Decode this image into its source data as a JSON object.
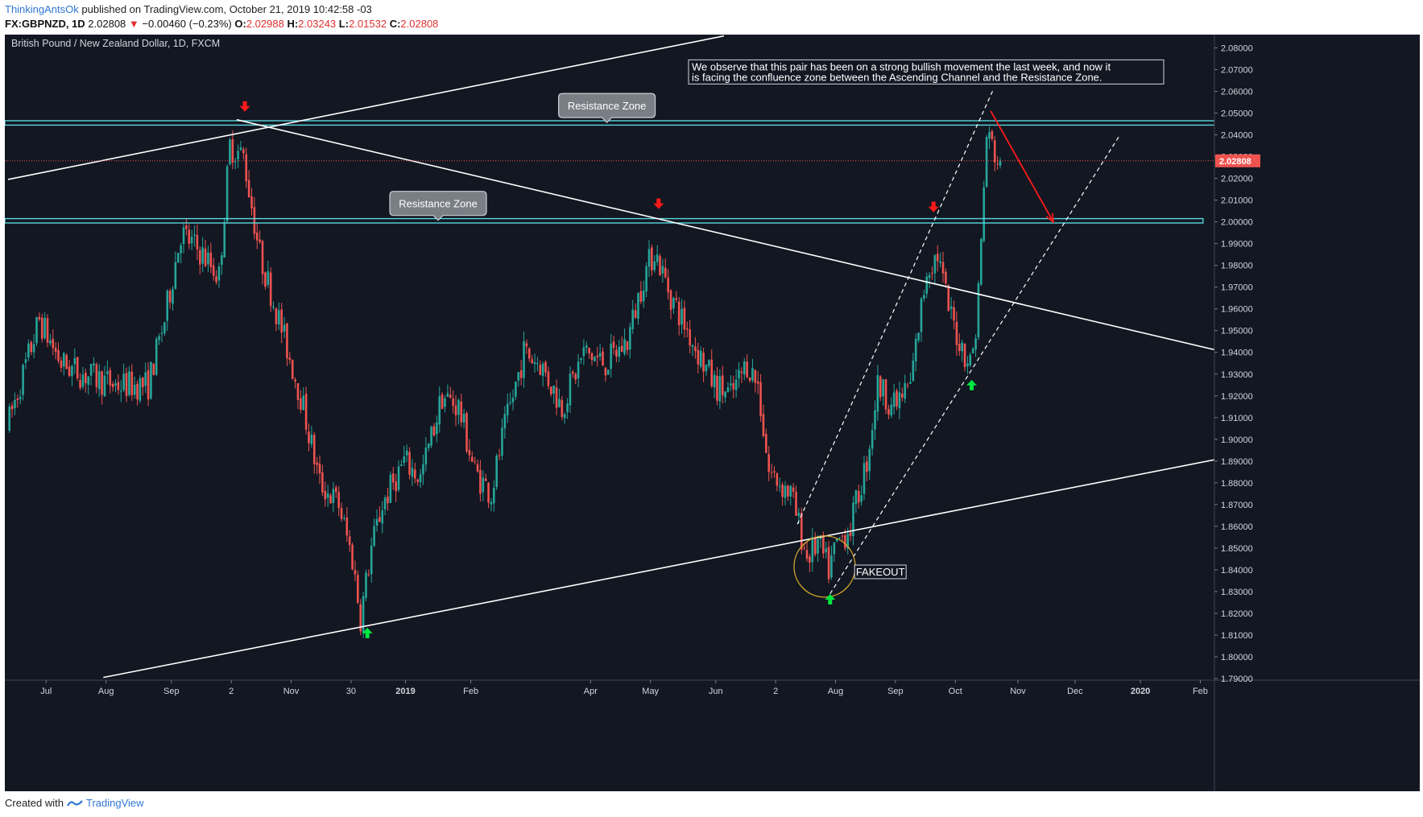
{
  "header": {
    "author": "ThinkingAntsOk",
    "published": "published on TradingView.com, October 21, 2019 10:42:58 -03",
    "symbol": "FX:GBPNZD, 1D",
    "last": "2.02808",
    "arrow": "▼",
    "change": "−0.00460 (−0.23%)",
    "o_label": "O:",
    "o_value": "2.02988",
    "h_label": "H:",
    "h_value": "2.03243",
    "l_label": "L:",
    "l_value": "2.01532",
    "c_label": "C:",
    "c_value": "2.02808"
  },
  "footer": {
    "created_with": "Created with",
    "brand": "TradingView"
  },
  "colors": {
    "background": "#131722",
    "up": "#26a69a",
    "down": "#ef5350",
    "zone": "#5ad6de",
    "line": "#ffffff",
    "price_tag": "#ef5350",
    "arrow_red": "#ff1a1a",
    "arrow_green": "#00e640",
    "circle": "#d4a72c"
  },
  "chart_data": {
    "type": "candlestick",
    "title": "British Pound / New Zealand Dollar, 1D, FXCM",
    "ylim": [
      1.79,
      2.085
    ],
    "y_ticks": [
      "2.08000",
      "2.07000",
      "2.06000",
      "2.05000",
      "2.04000",
      "2.03000",
      "2.02000",
      "2.01000",
      "2.00000",
      "1.99000",
      "1.98000",
      "1.97000",
      "1.96000",
      "1.95000",
      "1.94000",
      "1.93000",
      "1.92000",
      "1.91000",
      "1.90000",
      "1.89000",
      "1.88000",
      "1.87000",
      "1.86000",
      "1.85000",
      "1.84000",
      "1.83000",
      "1.82000",
      "1.81000",
      "1.80000",
      "1.79000"
    ],
    "x_ticks": [
      {
        "label": "Jul",
        "bar": 14,
        "bold": false
      },
      {
        "label": "Aug",
        "bar": 36,
        "bold": false
      },
      {
        "label": "Sep",
        "bar": 60,
        "bold": false
      },
      {
        "label": "2",
        "bar": 82,
        "bold": false
      },
      {
        "label": "Nov",
        "bar": 104,
        "bold": false
      },
      {
        "label": "30",
        "bar": 126,
        "bold": false
      },
      {
        "label": "2019",
        "bar": 146,
        "bold": true
      },
      {
        "label": "Feb",
        "bar": 170,
        "bold": false
      },
      {
        "label": "Apr",
        "bar": 214,
        "bold": false
      },
      {
        "label": "May",
        "bar": 236,
        "bold": false
      },
      {
        "label": "Jun",
        "bar": 260,
        "bold": false
      },
      {
        "label": "2",
        "bar": 282,
        "bold": false
      },
      {
        "label": "Aug",
        "bar": 304,
        "bold": false
      },
      {
        "label": "Sep",
        "bar": 326,
        "bold": false
      },
      {
        "label": "Oct",
        "bar": 348,
        "bold": false
      },
      {
        "label": "Nov",
        "bar": 371,
        "bold": false
      },
      {
        "label": "Dec",
        "bar": 392,
        "bold": false
      },
      {
        "label": "2020",
        "bar": 416,
        "bold": true
      },
      {
        "label": "Feb",
        "bar": 438,
        "bold": false
      }
    ],
    "bars_total": 444,
    "price_path": [
      [
        0,
        1.905
      ],
      [
        12,
        1.955
      ],
      [
        20,
        1.935
      ],
      [
        28,
        1.93
      ],
      [
        40,
        1.925
      ],
      [
        52,
        1.925
      ],
      [
        58,
        1.955
      ],
      [
        64,
        1.995
      ],
      [
        72,
        1.985
      ],
      [
        78,
        1.975
      ],
      [
        82,
        2.035
      ],
      [
        87,
        2.03
      ],
      [
        93,
        1.985
      ],
      [
        100,
        1.955
      ],
      [
        108,
        1.92
      ],
      [
        115,
        1.88
      ],
      [
        122,
        1.87
      ],
      [
        127,
        1.845
      ],
      [
        130,
        1.818
      ],
      [
        134,
        1.85
      ],
      [
        138,
        1.87
      ],
      [
        146,
        1.89
      ],
      [
        152,
        1.882
      ],
      [
        160,
        1.92
      ],
      [
        166,
        1.915
      ],
      [
        172,
        1.885
      ],
      [
        178,
        1.875
      ],
      [
        182,
        1.9
      ],
      [
        190,
        1.94
      ],
      [
        196,
        1.935
      ],
      [
        204,
        1.915
      ],
      [
        212,
        1.94
      ],
      [
        220,
        1.935
      ],
      [
        228,
        1.945
      ],
      [
        234,
        1.975
      ],
      [
        238,
        1.987
      ],
      [
        244,
        1.966
      ],
      [
        252,
        1.945
      ],
      [
        260,
        1.925
      ],
      [
        266,
        1.92
      ],
      [
        272,
        1.935
      ],
      [
        276,
        1.925
      ],
      [
        280,
        1.885
      ],
      [
        288,
        1.875
      ],
      [
        294,
        1.846
      ],
      [
        298,
        1.852
      ],
      [
        302,
        1.84
      ],
      [
        305,
        1.852
      ],
      [
        310,
        1.86
      ],
      [
        316,
        1.89
      ],
      [
        320,
        1.925
      ],
      [
        326,
        1.915
      ],
      [
        332,
        1.925
      ],
      [
        338,
        1.978
      ],
      [
        342,
        1.985
      ],
      [
        346,
        1.96
      ],
      [
        350,
        1.945
      ],
      [
        354,
        1.935
      ],
      [
        356,
        1.95
      ],
      [
        358,
        1.99
      ],
      [
        360,
        2.04
      ],
      [
        362,
        2.035
      ],
      [
        364,
        2.028
      ]
    ],
    "zones": [
      {
        "label": "Resistance Zone",
        "low": 2.0445,
        "high": 2.0465,
        "end_bar": 445,
        "label_bar": 220,
        "label_price": 2.0535
      },
      {
        "label": "Resistance Zone",
        "low": 1.9995,
        "high": 2.0015,
        "end_bar": 439,
        "label_bar": 158,
        "label_price": 2.0085
      }
    ],
    "lines": [
      {
        "from": [
          0,
          2.0195
        ],
        "to": [
          263,
          2.0855
        ],
        "style": "solid"
      },
      {
        "from": [
          35,
          1.7905
        ],
        "to": [
          444,
          1.8908
        ],
        "style": "solid"
      },
      {
        "from": [
          84,
          2.047
        ],
        "to": [
          444,
          1.941
        ],
        "style": "solid"
      },
      {
        "from": [
          290,
          1.861
        ],
        "to": [
          362,
          2.061
        ],
        "style": "dashed"
      },
      {
        "from": [
          302,
          1.829
        ],
        "to": [
          408,
          2.039
        ],
        "style": "dashed"
      }
    ],
    "forecast_arrow": {
      "from": [
        361,
        2.051
      ],
      "to": [
        384,
        2.0
      ]
    },
    "current_price": {
      "value": 2.02808,
      "label": "2.02808"
    },
    "red_markers": [
      [
        87,
        2.0525
      ],
      [
        239,
        2.0078
      ],
      [
        340,
        2.0063
      ]
    ],
    "green_markers": [
      [
        132,
        1.8115
      ],
      [
        302,
        1.827
      ],
      [
        354,
        1.9255
      ]
    ],
    "circle": {
      "bar": 300,
      "price": 1.8415
    },
    "annotations": [
      {
        "kind": "note",
        "text_lines": [
          "We observe that this pair has been on a strong bullish movement the last week, and now it",
          "is facing the confluence zone between the Ascending Channel and the Resistance Zone."
        ],
        "bar": 250,
        "price": 2.0745
      },
      {
        "kind": "box",
        "text": "FAKEOUT",
        "bar": 311,
        "price": 1.8385
      }
    ]
  }
}
